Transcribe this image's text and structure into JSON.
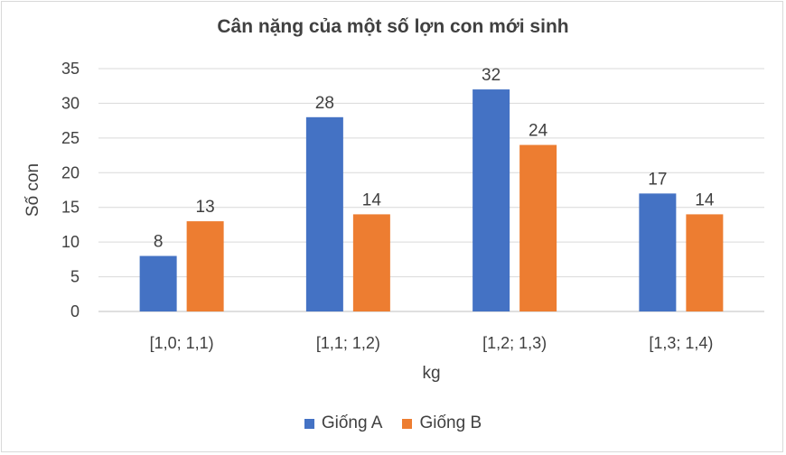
{
  "chart_data": {
    "type": "bar",
    "title": "Cân nặng của một số lợn con mới sinh",
    "xlabel": "kg",
    "ylabel": "Số con",
    "categories": [
      "[1,0; 1,1)",
      "[1,1; 1,2)",
      "[1,2; 1,3)",
      "[1,3; 1,4)"
    ],
    "series": [
      {
        "name": "Giống A",
        "values": [
          8,
          28,
          32,
          17
        ],
        "color": "#4472c4"
      },
      {
        "name": "Giống B",
        "values": [
          13,
          14,
          24,
          14
        ],
        "color": "#ed7d31"
      }
    ],
    "ylim": [
      0,
      35
    ],
    "yticks": [
      "0",
      "5",
      "10",
      "15",
      "20",
      "25",
      "30",
      "35"
    ],
    "grid": true,
    "legend_position": "bottom"
  }
}
